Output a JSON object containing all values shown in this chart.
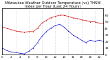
{
  "title": "Milwaukee Weather Outdoor Temperature (vs) THSW Index per Hour (Last 24 Hours)",
  "title_fontsize": 3.8,
  "background_color": "#ffffff",
  "grid_color": "#c0c0c0",
  "hours": [
    0,
    1,
    2,
    3,
    4,
    5,
    6,
    7,
    8,
    9,
    10,
    11,
    12,
    13,
    14,
    15,
    16,
    17,
    18,
    19,
    20,
    21,
    22,
    23
  ],
  "temp": [
    42,
    40,
    38,
    36,
    35,
    34,
    35,
    35,
    40,
    48,
    52,
    56,
    58,
    60,
    60,
    58,
    56,
    55,
    53,
    52,
    50,
    50,
    48,
    47
  ],
  "thsw": [
    10,
    6,
    4,
    3,
    2,
    1,
    5,
    10,
    18,
    28,
    35,
    40,
    44,
    46,
    42,
    36,
    30,
    26,
    22,
    18,
    22,
    20,
    22,
    20
  ],
  "temp_color": "#cc0000",
  "thsw_color": "#0000cc",
  "ylim": [
    0,
    70
  ],
  "yticks": [
    0,
    10,
    20,
    30,
    40,
    50,
    60
  ],
  "ylabel_fontsize": 3.2,
  "xlabel_fontsize": 3.0,
  "grid_hours": [
    0,
    3,
    6,
    9,
    12,
    15,
    18,
    21
  ]
}
